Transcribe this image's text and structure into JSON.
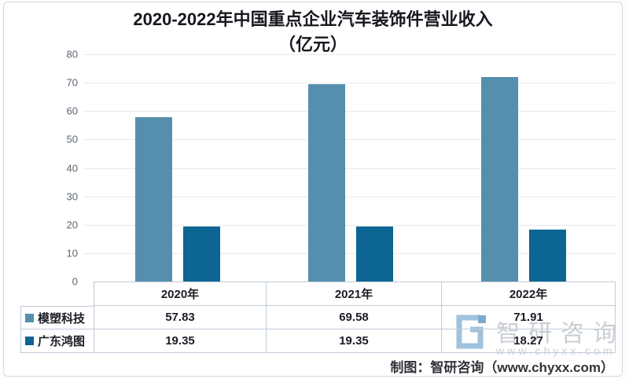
{
  "page": {
    "title_line1": "2020-2022年中国重点企业汽车装饰件营业收入",
    "title_line2": "（亿元）",
    "credit": "制图：智研咨询（www.chyxx.com）"
  },
  "chart_data": {
    "type": "bar",
    "title": "2020-2022年中国重点企业汽车装饰件营业收入（亿元）",
    "categories": [
      "2020年",
      "2021年",
      "2022年"
    ],
    "series": [
      {
        "name": "模塑科技",
        "color": "#568fae",
        "values": [
          57.83,
          69.58,
          71.91
        ]
      },
      {
        "name": "广东鸿图",
        "color": "#0c6592",
        "values": [
          19.35,
          19.35,
          18.27
        ]
      }
    ],
    "ylim": [
      0,
      80
    ],
    "yticks": [
      0,
      10,
      20,
      30,
      40,
      50,
      60,
      70,
      80
    ],
    "grid": true,
    "legend_position": "table-left",
    "value_decimals": 2
  },
  "watermark": {
    "brand": "智研咨询",
    "url": "www.chyxx.com"
  },
  "colors": {
    "series1": "#568fae",
    "series2": "#0c6592",
    "grid": "#e6eaee",
    "table_border": "#bfcbd8",
    "watermark": "#caced5",
    "logo_blue": "#9fc2de"
  }
}
